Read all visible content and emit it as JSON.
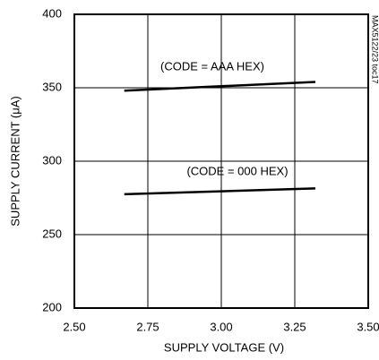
{
  "chart_data": {
    "type": "line",
    "x_label": "SUPPLY VOLTAGE (V)",
    "y_label": "SUPPLY CURRENT (μA)",
    "note": "MAX5122/23 toc17",
    "x": [
      2.67,
      3.32
    ],
    "series": [
      {
        "name": "(CODE = AAA HEX)",
        "color": "#000000",
        "values": [
          348,
          354
        ]
      },
      {
        "name": "(CODE = 000 HEX)",
        "color": "#000000",
        "values": [
          277.5,
          281.5
        ]
      }
    ],
    "xlim": [
      2.5,
      3.5
    ],
    "xticks": [
      {
        "value": 2.5,
        "label": "2.50"
      },
      {
        "value": 2.75,
        "label": "2.75"
      },
      {
        "value": 3,
        "label": "3.00"
      },
      {
        "value": 3.25,
        "label": "3.25"
      },
      {
        "value": 3.5,
        "label": "3.50"
      }
    ],
    "ylim": [
      200,
      400
    ],
    "yticks": [
      200,
      250,
      300,
      350,
      400
    ],
    "grid": true
  }
}
